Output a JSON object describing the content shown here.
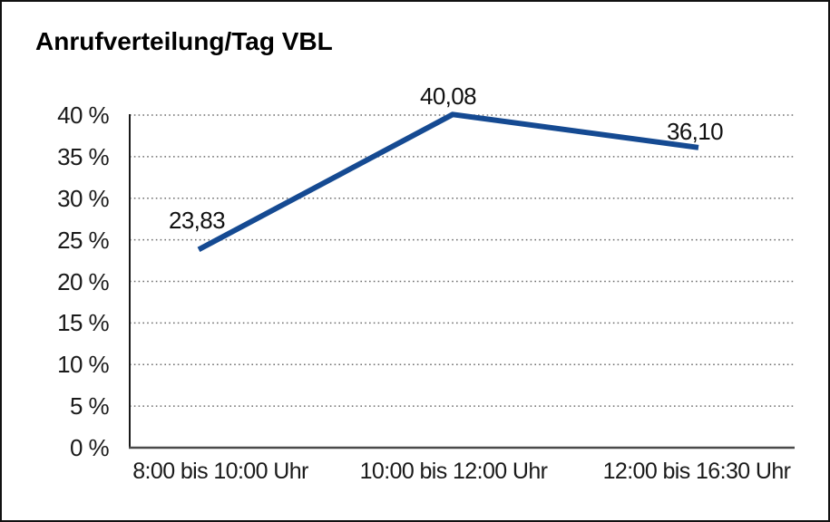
{
  "title": "Anrufverteilung/Tag VBL",
  "chart_data": {
    "type": "line",
    "title": "Anrufverteilung/Tag VBL",
    "categories": [
      "8:00 bis 10:00 Uhr",
      "10:00 bis 12:00 Uhr",
      "12:00 bis 16:30 Uhr"
    ],
    "values": [
      23.83,
      40.08,
      36.1
    ],
    "point_labels": [
      "23,83",
      "40,08",
      "36,10"
    ],
    "xlabel": "",
    "ylabel": "",
    "ylim": [
      0,
      40
    ],
    "y_tick_step": 5,
    "y_tick_labels": [
      "0 %",
      "5 %",
      "10 %",
      "15 %",
      "20 %",
      "25 %",
      "30 %",
      "35 %",
      "40 %"
    ],
    "grid": "horizontal-dotted",
    "legend": "none"
  },
  "colors": {
    "line": "#154a92",
    "grid": "#6e6e6e",
    "y_axis": "#1a1a1a",
    "x_axis": "#4a4a4a",
    "text": "#1a1a1a",
    "background": "#ffffff",
    "frame": "#111111"
  }
}
